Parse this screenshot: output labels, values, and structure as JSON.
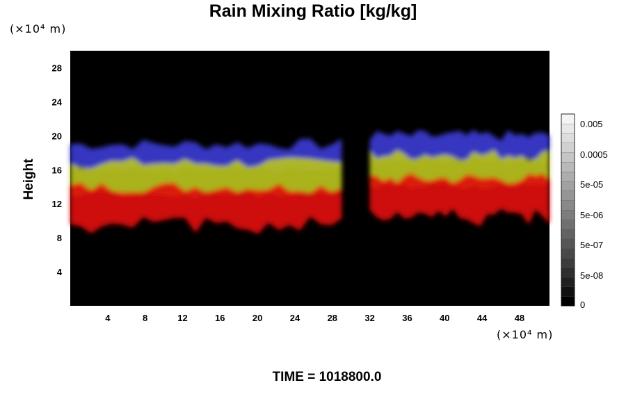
{
  "chart_data": {
    "type": "heatmap",
    "title": "Rain Mixing Ratio [kg/kg]",
    "ylabel": "Height",
    "xlabel": "",
    "x_unit": "(×10⁴ m)",
    "y_unit": "(×10⁴ m)",
    "footer": "TIME = 1018800.0",
    "xlim": [
      0,
      51.2
    ],
    "ylim": [
      0,
      30
    ],
    "x_ticks": [
      4,
      8,
      12,
      16,
      20,
      24,
      28,
      32,
      36,
      40,
      44,
      48
    ],
    "y_ticks": [
      4,
      8,
      12,
      16,
      20,
      24,
      28
    ],
    "background_color": "#000000",
    "colorbar": {
      "tick_labels": [
        "0",
        "5e-08",
        "5e-07",
        "5e-06",
        "5e-05",
        "0.0005",
        "0.005"
      ],
      "levels": 20,
      "color_low": "#000000",
      "color_high": "#f4f4f4"
    },
    "layers": [
      {
        "color": "#3a3ad0",
        "band": [
          16.5,
          19.0
        ]
      },
      {
        "color": "#b8c21e",
        "band": [
          13.5,
          16.8
        ]
      },
      {
        "color": "#e01010",
        "band": [
          10.5,
          14.0
        ]
      }
    ],
    "clouds": [
      {
        "x_range": [
          0,
          29
        ],
        "top_height": 19
      },
      {
        "x_range": [
          32,
          51.2
        ],
        "top_height": 20
      }
    ]
  }
}
